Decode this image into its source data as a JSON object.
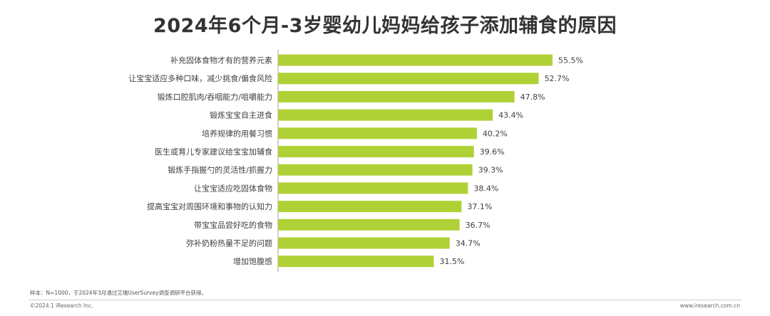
{
  "title": "2024年6个月-3岁婴幼儿妈妈给孩子添加辅食的原因",
  "colors": {
    "bar": "#b0d136",
    "axis": "#a6a6a6"
  },
  "chart_data": {
    "type": "bar",
    "orientation": "horizontal",
    "categories": [
      "补充固体食物才有的营养元素",
      "让宝宝适应多种口味，减少挑食/偏食风险",
      "锻炼口腔肌肉/吞咽能力/咀嚼能力",
      "锻炼宝宝自主进食",
      "培养规律的用餐习惯",
      "医生或育儿专家建议给宝宝加辅食",
      "锻炼手指握勺的灵活性/抓握力",
      "让宝宝适应吃固体食物",
      "提高宝宝对周围环境和事物的认知力",
      "带宝宝品尝好吃的食物",
      "弥补奶粉热量不足的问题",
      "增加饱腹感"
    ],
    "values": [
      55.5,
      52.7,
      47.8,
      43.4,
      40.2,
      39.6,
      39.3,
      38.4,
      37.1,
      36.7,
      34.7,
      31.5
    ],
    "value_labels": [
      "55.5%",
      "52.7%",
      "47.8%",
      "43.4%",
      "40.2%",
      "39.6%",
      "39.3%",
      "38.4%",
      "37.1%",
      "36.7%",
      "34.7%",
      "31.5%"
    ],
    "xlim": [
      0,
      60
    ],
    "grid": false,
    "legend": "none"
  },
  "footnote": "样本：N=1000，于2024年3月通过艾瑞UserSurvey调查调研平台获得。",
  "copyright": "©2024.1 iResearch Inc.",
  "website": "www.iresearch.com.cn"
}
